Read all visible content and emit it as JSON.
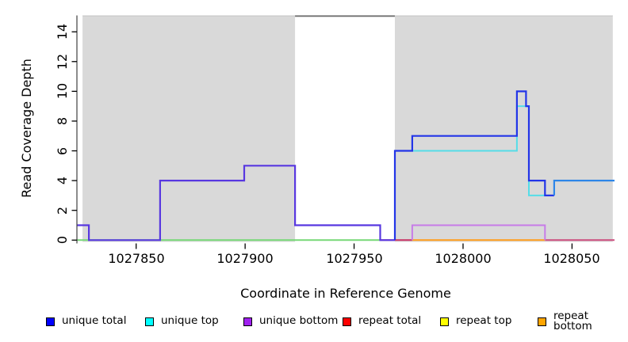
{
  "chart_data": {
    "type": "line",
    "subtype": "step-coverage",
    "title": "",
    "xlabel": "Coordinate in Reference Genome",
    "ylabel": "Read Coverage Depth",
    "xlim": [
      1027823.0,
      1028069.5
    ],
    "ylim": [
      -0.17,
      15.1
    ],
    "x_ticks": [
      1027850,
      1027900,
      1027950,
      1028000,
      1028050
    ],
    "y_ticks": [
      0,
      2,
      4,
      6,
      8,
      10,
      12,
      14
    ],
    "grid": false,
    "background_color": "#FFFFFF",
    "shaded_regions": [
      {
        "x1": 1027825.4,
        "x2": 1027922.9,
        "color": "#D9D9D9",
        "edge_color": "#C4C4C4"
      },
      {
        "x1": 1027968.7,
        "x2": 1028068.7,
        "color": "#D9D9D9",
        "edge_color": "#C4C4C4"
      }
    ],
    "top_border_segment": {
      "x1": 1027922.9,
      "x2": 1027968.7,
      "color": "#707070"
    },
    "series": [
      {
        "name": "unique total",
        "color": "#0000FF",
        "steps": [
          [
            1027823,
            1
          ],
          [
            1027828,
            0
          ],
          [
            1027861,
            4
          ],
          [
            1027900,
            5
          ],
          [
            1027923,
            1
          ],
          [
            1027962,
            0
          ],
          [
            1027969,
            6
          ],
          [
            1027977,
            7
          ],
          [
            1028025,
            10
          ],
          [
            1028029,
            9
          ],
          [
            1028030,
            4
          ],
          [
            1028038,
            3
          ],
          [
            1028042,
            4
          ]
        ],
        "end": 1028069
      },
      {
        "name": "unique top",
        "color": "#00FFFF",
        "steps": [
          [
            1027823,
            0
          ],
          [
            1027969,
            6
          ],
          [
            1028025,
            9
          ],
          [
            1028030,
            3
          ],
          [
            1028042,
            4
          ]
        ],
        "end": 1028069
      },
      {
        "name": "unique bottom",
        "color": "#A020F0",
        "steps": [
          [
            1027823,
            1
          ],
          [
            1027828,
            0
          ],
          [
            1027861,
            4
          ],
          [
            1027900,
            5
          ],
          [
            1027923,
            1
          ],
          [
            1027962,
            0
          ],
          [
            1027977,
            1
          ],
          [
            1028038,
            0
          ]
        ],
        "end": 1028069
      },
      {
        "name": "repeat total",
        "color": "#FF0000",
        "steps": [
          [
            1027823,
            0
          ]
        ],
        "end": 1028069
      },
      {
        "name": "repeat top",
        "color": "#FFFF00",
        "steps": [
          [
            1027823,
            0
          ]
        ],
        "end": 1028069
      },
      {
        "name": "repeat bottom",
        "color": "#FFA500",
        "steps": [
          [
            1027823,
            0
          ]
        ],
        "end": 1028069
      }
    ],
    "rendered_lines": [
      {
        "name": "zero-line-green",
        "color": "#77D877",
        "width": 2,
        "points": [
          [
            1027823.0,
            0
          ]
        ],
        "end": 1027962.0
      },
      {
        "name": "zero-line-red",
        "color": "#C83264",
        "width": 2,
        "points": [
          [
            1027962.0,
            0
          ]
        ],
        "end": 1027976.7
      },
      {
        "name": "zero-line-orange",
        "color": "#FF9E1B",
        "width": 2,
        "points": [
          [
            1027976.7,
            0
          ]
        ],
        "end": 1028037.6
      },
      {
        "name": "zero-line-pink",
        "color": "#CC4E7E",
        "width": 2,
        "points": [
          [
            1028037.6,
            0
          ]
        ],
        "end": 1028069.5
      },
      {
        "name": "unique-bottom-line",
        "color": "#C77CE8",
        "width": 2,
        "points": [
          [
            1027976.7,
            0
          ],
          [
            1027976.7,
            1
          ],
          [
            1028037.6,
            0
          ]
        ],
        "end": 1028037.6
      },
      {
        "name": "unique-left-line",
        "color": "#5838E0",
        "width": 2.2,
        "points": [
          [
            1027823.0,
            1
          ],
          [
            1027828.3,
            0
          ],
          [
            1027861.0,
            4
          ],
          [
            1027899.6,
            5
          ],
          [
            1027922.9,
            1
          ],
          [
            1027962.0,
            0
          ]
        ],
        "end": 1027968.7
      },
      {
        "name": "unique-top-line",
        "color": "#55DDE8",
        "width": 2,
        "points": [
          [
            1027976.7,
            6
          ],
          [
            1028024.7,
            9
          ],
          [
            1028030.2,
            3
          ]
        ],
        "end": 1028037.6
      },
      {
        "name": "unique-total-line",
        "color": "#2335E8",
        "width": 2.2,
        "points": [
          [
            1027968.7,
            0
          ],
          [
            1027968.7,
            6
          ],
          [
            1027976.7,
            7
          ],
          [
            1028024.7,
            10
          ],
          [
            1028028.9,
            9
          ],
          [
            1028030.2,
            4
          ],
          [
            1028037.6,
            3
          ]
        ],
        "end": 1028041.8
      },
      {
        "name": "unique-merged-line",
        "color": "#2E86E8",
        "width": 2.2,
        "points": [
          [
            1028041.8,
            3
          ],
          [
            1028041.8,
            4
          ]
        ],
        "end": 1028069.5
      }
    ]
  },
  "legend": {
    "items": [
      {
        "label": "unique total",
        "color": "#0000FF"
      },
      {
        "label": "unique top",
        "color": "#00FFFF"
      },
      {
        "label": "unique bottom",
        "color": "#A020F0"
      },
      {
        "label": "repeat total",
        "color": "#FF0000"
      },
      {
        "label": "repeat top",
        "color": "#FFFF00"
      },
      {
        "label": "repeat bottom",
        "color": "#FFA500"
      }
    ]
  }
}
